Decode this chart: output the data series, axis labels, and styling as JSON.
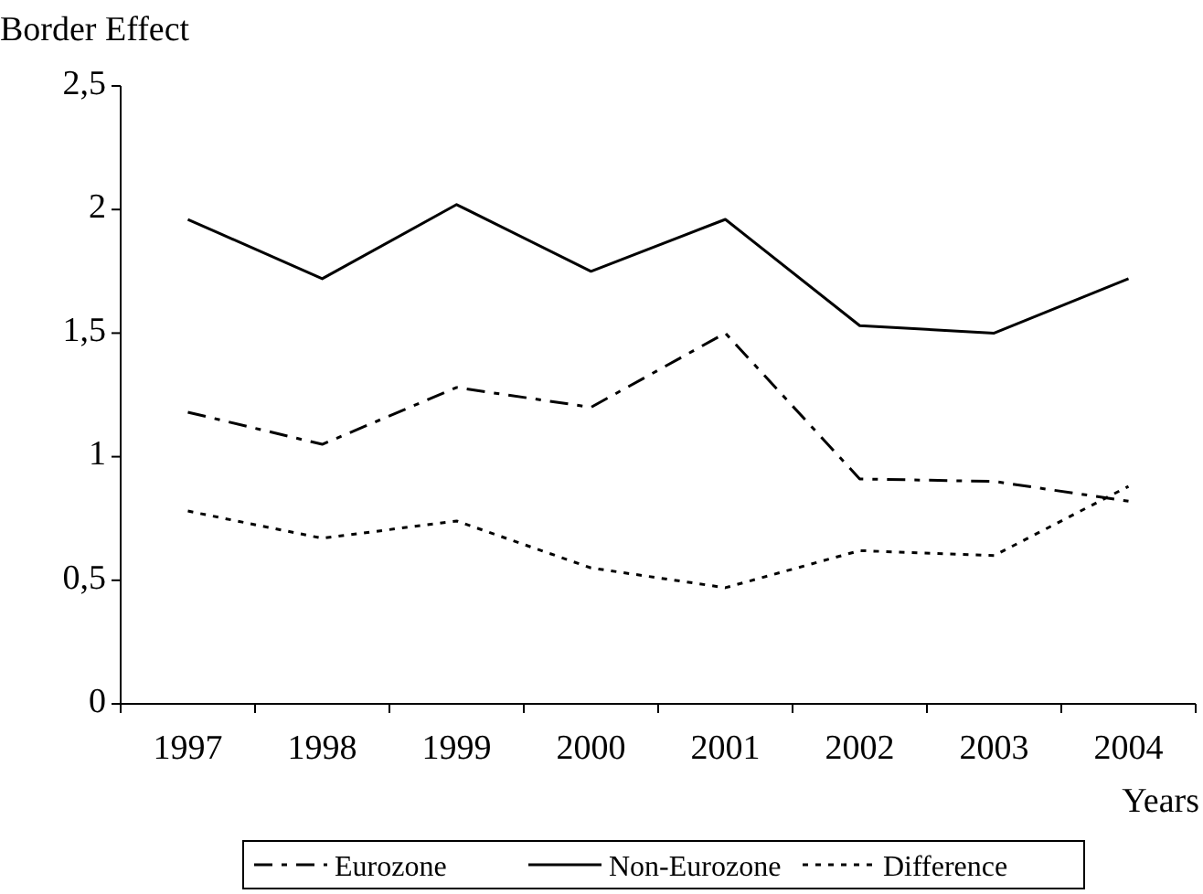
{
  "chart_data": {
    "type": "line",
    "ylabel": "Border Effect",
    "xlabel": "Years",
    "categories": [
      "1997",
      "1998",
      "1999",
      "2000",
      "2001",
      "2002",
      "2003",
      "2004"
    ],
    "ylim": [
      0,
      2.5
    ],
    "yticks": [
      0,
      {
        "value": 0.5,
        "label": "0,5"
      },
      1,
      {
        "value": 1.5,
        "label": "1,5"
      },
      2,
      {
        "value": 2.5,
        "label": "2,5"
      }
    ],
    "series": [
      {
        "name": "Eurozone",
        "color": "#000000",
        "line_style": "dashdot",
        "values": [
          1.18,
          1.05,
          1.28,
          1.2,
          1.5,
          0.91,
          0.9,
          0.82
        ]
      },
      {
        "name": "Non-Eurozone",
        "color": "#000000",
        "line_style": "solid",
        "values": [
          1.96,
          1.72,
          2.02,
          1.75,
          1.96,
          1.53,
          1.5,
          1.72
        ]
      },
      {
        "name": "Difference",
        "color": "#000000",
        "line_style": "dotted",
        "values": [
          0.78,
          0.67,
          0.74,
          0.55,
          0.47,
          0.62,
          0.6,
          0.88
        ]
      }
    ],
    "legend": "bottom",
    "grid": false
  }
}
